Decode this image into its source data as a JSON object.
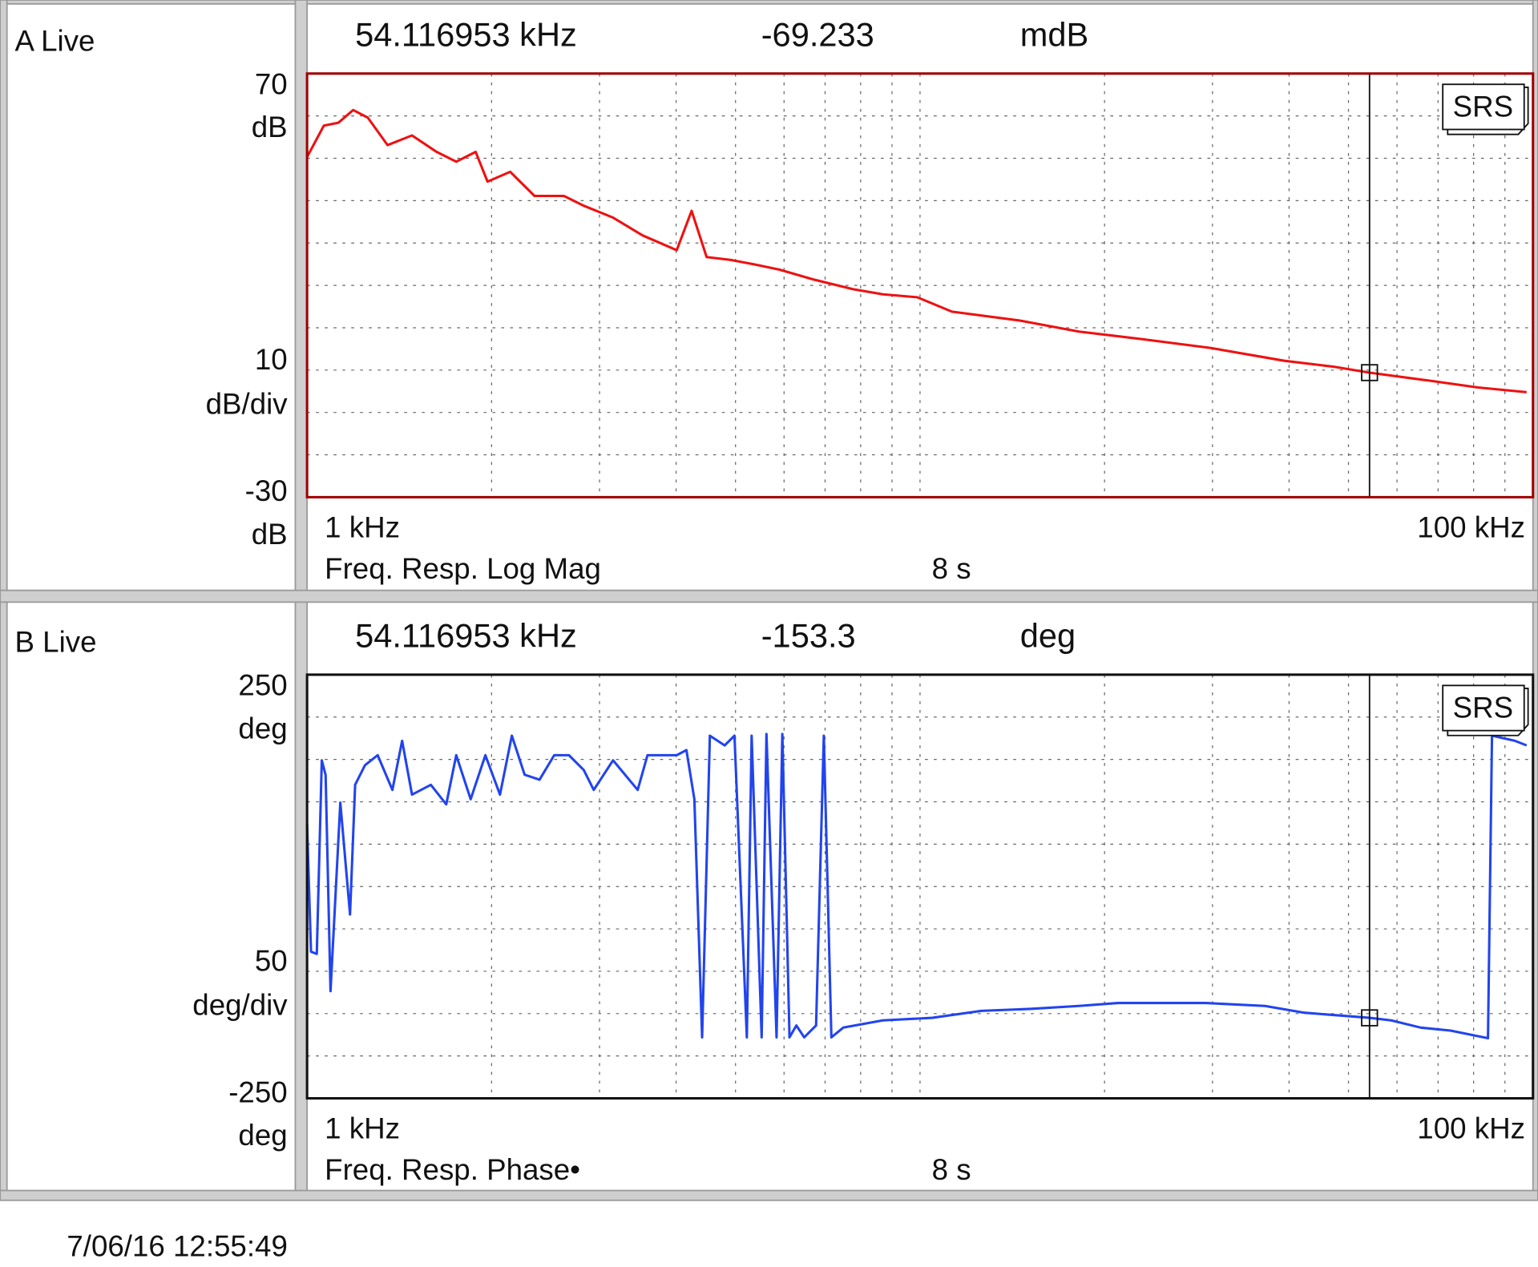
{
  "logo": "SRS",
  "timestamp": "7/06/16  12:55:49",
  "chart_data": [
    {
      "type": "line",
      "channel": "A Live",
      "marker": {
        "x": {
          "value": 54116.953,
          "label": "54.116953 kHz"
        },
        "value": -69.233,
        "unit": "mdB"
      },
      "measurement": "Freq. Resp. Log Mag",
      "time": "8 s",
      "ylim": [
        -30,
        70
      ],
      "yticks": [
        70,
        -30
      ],
      "y_unit": "dB",
      "scale": 10,
      "scale_unit": "dB/div",
      "xlim": [
        1000,
        100000
      ],
      "xticks": [
        {
          "value": 1000,
          "label": "1 kHz"
        },
        {
          "value": 100000,
          "label": "100 kHz"
        }
      ],
      "log_x": true,
      "grid": true,
      "color": "#ee1111",
      "frame_color": "#a00000",
      "x": [
        1000,
        1065,
        1125,
        1189,
        1256,
        1353,
        1483,
        1627,
        1751,
        1884,
        1970,
        2145,
        2350,
        2624,
        2827,
        3156,
        3525,
        4009,
        4240,
        4486,
        4913,
        5384,
        5900,
        6700,
        7779,
        8696,
        9895,
        11270,
        14550,
        18160,
        23060,
        29820,
        39290,
        47240,
        54120,
        67810,
        81330,
        97650
      ],
      "values": [
        50.3,
        57.7,
        58.4,
        61.4,
        59.6,
        53.1,
        55.4,
        51.5,
        49.2,
        51.5,
        44.5,
        46.8,
        41.1,
        41.1,
        38.8,
        36.0,
        31.8,
        28.3,
        37.6,
        26.7,
        26.0,
        24.9,
        23.7,
        21.4,
        19.1,
        17.9,
        17.2,
        13.8,
        11.7,
        9.1,
        7.3,
        5.2,
        2.2,
        0.8,
        -0.6,
        -2.5,
        -4.1,
        -5.2
      ]
    },
    {
      "type": "line",
      "channel": "B Live",
      "marker": {
        "x": {
          "value": 54116.953,
          "label": "54.116953 kHz"
        },
        "value": -153.3,
        "unit": "deg"
      },
      "measurement": "Freq. Resp. Phase•",
      "time": "8 s",
      "ylim": [
        -250,
        250
      ],
      "yticks": [
        250,
        -250
      ],
      "y_unit": "deg",
      "scale": 50,
      "scale_unit": "deg/div",
      "xlim": [
        1000,
        100000
      ],
      "xticks": [
        {
          "value": 1000,
          "label": "1 kHz"
        },
        {
          "value": 100000,
          "label": "100 kHz"
        }
      ],
      "log_x": true,
      "grid": true,
      "color": "#2244ee",
      "frame_color": "#111111",
      "x": [
        1000,
        1015,
        1037,
        1057,
        1072,
        1092,
        1133,
        1175,
        1198,
        1243,
        1304,
        1378,
        1429,
        1483,
        1592,
        1687,
        1751,
        1849,
        1954,
        2064,
        2158,
        2264,
        2394,
        2530,
        2674,
        2827,
        2935,
        3156,
        3462,
        3592,
        4009,
        4158,
        4284,
        4410,
        4541,
        4800,
        4980,
        5217,
        5313,
        5515,
        5617,
        5834,
        5962,
        6124,
        6284,
        6472,
        6766,
        6968,
        7168,
        7494,
        8696,
        10470,
        12590,
        15120,
        18160,
        21040,
        29270,
        36530,
        42370,
        54120,
        58700,
        65620,
        73370,
        84430,
        85720,
        93420,
        97650
      ],
      "values": [
        73.7,
        -77,
        -79.5,
        149,
        131.7,
        -123.5,
        99,
        -33,
        120,
        143,
        155,
        114,
        172,
        108.5,
        120,
        97,
        155,
        103,
        155,
        108.5,
        178,
        132,
        126,
        155,
        155,
        137.5,
        114,
        149,
        114,
        155,
        155,
        161,
        103,
        -178,
        178,
        166.5,
        178,
        -178,
        178,
        -178,
        180,
        -178,
        180,
        -178,
        -164,
        -178,
        -164,
        178,
        -178,
        -166.5,
        -158,
        -155,
        -146.8,
        -144.4,
        -141,
        -137.5,
        -137.5,
        -141,
        -149,
        -155,
        -158,
        -166.5,
        -170,
        -179,
        178,
        172,
        166.5
      ]
    }
  ]
}
